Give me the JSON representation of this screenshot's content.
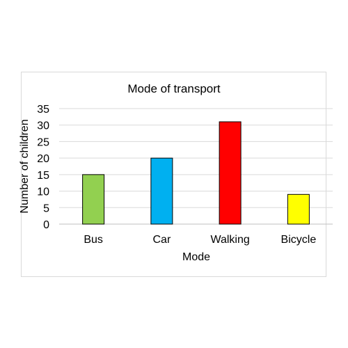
{
  "chart_data": {
    "type": "bar",
    "title": "Mode of transport",
    "xlabel": "Mode",
    "ylabel": "Number of children",
    "categories": [
      "Bus",
      "Car",
      "Walking",
      "Bicycle"
    ],
    "values": [
      15,
      20,
      31,
      9
    ],
    "colors": [
      "#92d050",
      "#00b0f0",
      "#ff0000",
      "#ffff00"
    ],
    "ylim": [
      0,
      35
    ],
    "yticks": [
      "0",
      "5",
      "10",
      "15",
      "20",
      "25",
      "30",
      "35"
    ],
    "grid": true,
    "legend": "none"
  }
}
